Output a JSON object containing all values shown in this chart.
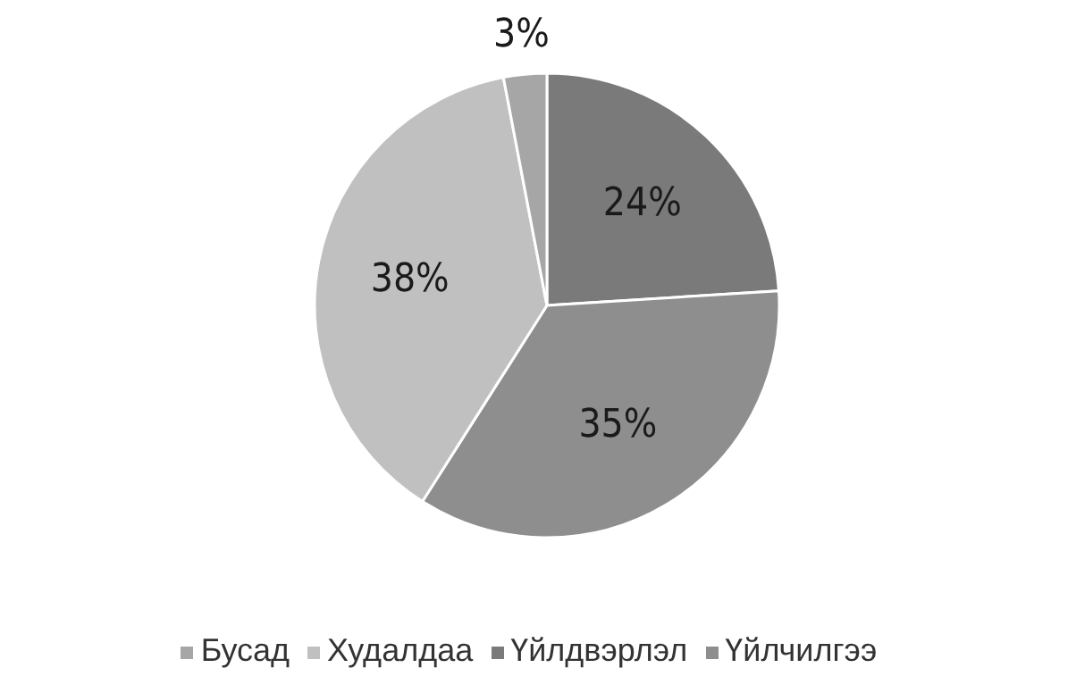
{
  "chart_data": {
    "type": "pie",
    "categories": [
      "Үйлдвэрлэл",
      "Үйлчилгээ",
      "Худалдаа",
      "Бусад"
    ],
    "values": [
      24,
      35,
      38,
      3
    ],
    "colors": [
      "#7a7a7a",
      "#8e8e8e",
      "#c0c0c0",
      "#a6a6a6"
    ],
    "value_labels": [
      "24%",
      "35%",
      "38%",
      "3%"
    ],
    "legend": "bottom"
  }
}
